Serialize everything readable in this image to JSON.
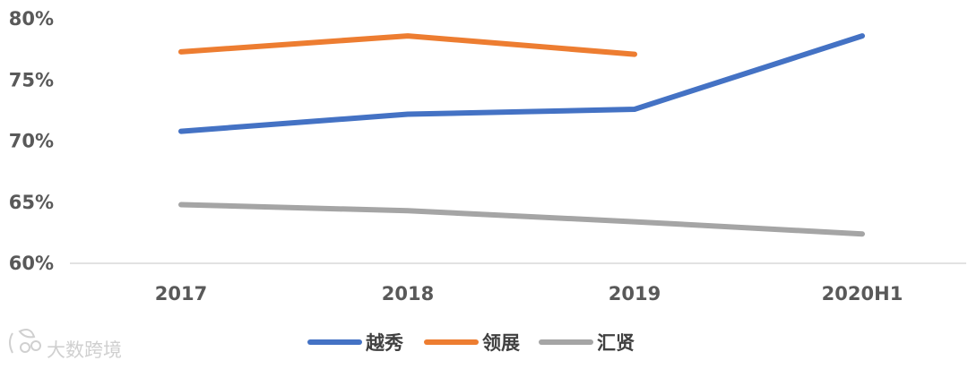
{
  "chart_data": {
    "type": "line",
    "categories": [
      "2017",
      "2018",
      "2019",
      "2020H1"
    ],
    "series": [
      {
        "name": "越秀",
        "color": "#4472c4",
        "values": [
          70.8,
          72.2,
          72.6,
          78.6
        ]
      },
      {
        "name": "领展",
        "color": "#ed7d31",
        "values": [
          77.3,
          78.6,
          77.1,
          null
        ]
      },
      {
        "name": "汇贤",
        "color": "#a5a5a5",
        "values": [
          64.8,
          64.3,
          63.4,
          62.4
        ]
      }
    ],
    "y_ticks": [
      "60%",
      "65%",
      "70%",
      "75%",
      "80%"
    ],
    "ylim": [
      60,
      80
    ],
    "grid": false,
    "legend_position": "bottom"
  },
  "watermark": {
    "text": "大数跨境",
    "icon": "logo-icon"
  }
}
